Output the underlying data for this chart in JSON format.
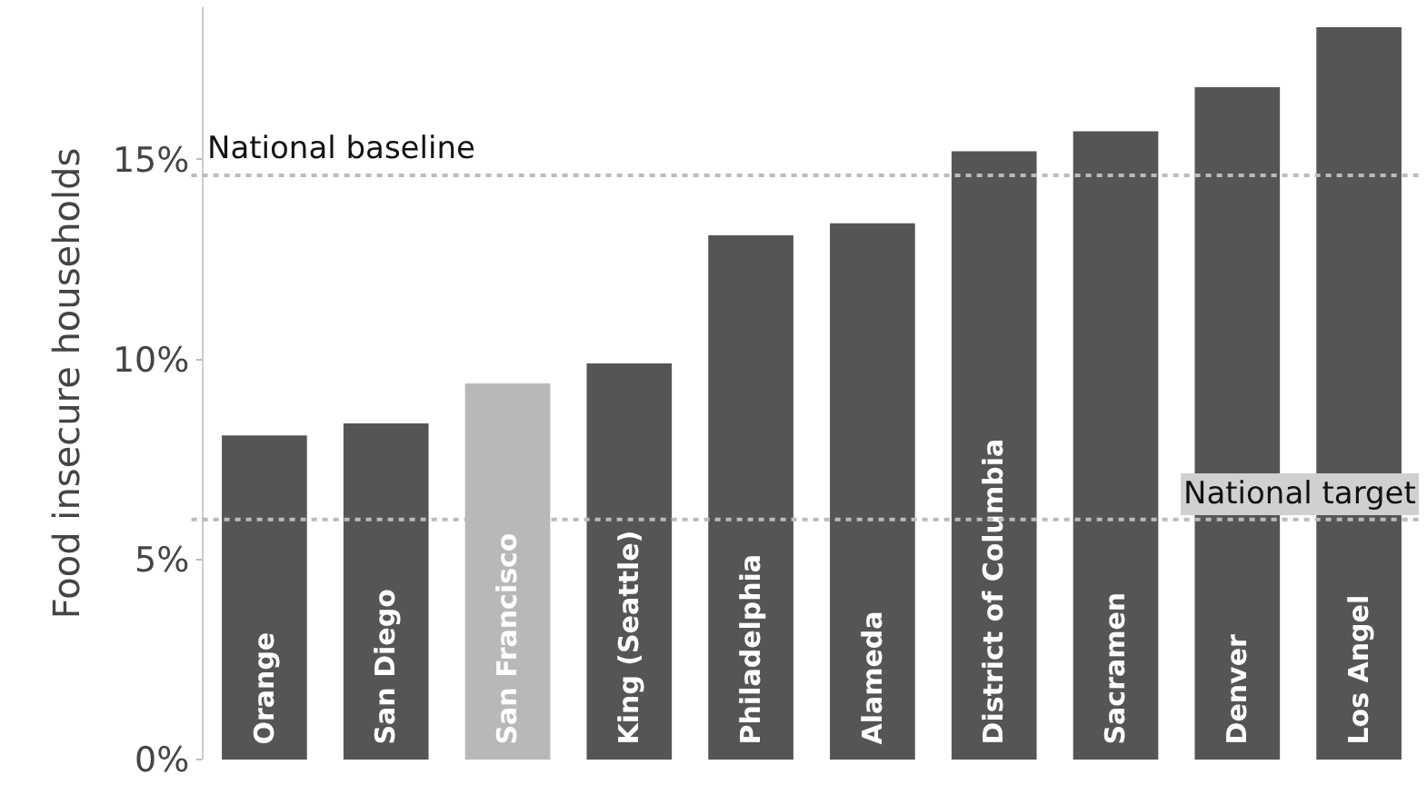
{
  "chart_data": {
    "type": "bar",
    "ylabel": "Food insecure households",
    "categories": [
      "Orange",
      "San Diego",
      "San Francisco",
      "King (Seattle)",
      "Philadelphia",
      "Alameda",
      "District of Columbia",
      "Sacramen",
      "Denver",
      "Los Angel"
    ],
    "values": [
      8.1,
      8.4,
      9.4,
      9.9,
      13.1,
      13.4,
      15.2,
      15.7,
      16.8,
      18.3
    ],
    "colors": [
      "#555555",
      "#555555",
      "#b8b8b8",
      "#555555",
      "#555555",
      "#555555",
      "#555555",
      "#555555",
      "#555555",
      "#555555"
    ],
    "ylim": [
      0,
      18.8
    ],
    "yticks": [
      {
        "value": 0,
        "label": "0%"
      },
      {
        "value": 5,
        "label": "5%"
      },
      {
        "value": 10,
        "label": "10%"
      },
      {
        "value": 15,
        "label": "15%"
      }
    ],
    "grid": false,
    "ref_lines": [
      {
        "axis": "y",
        "value": 14.6,
        "label": "National baseline",
        "color": "#bbbbbb",
        "line_style": "dotted"
      },
      {
        "axis": "y",
        "value": 6.0,
        "label": "National target",
        "color": "#bbbbbb",
        "line_style": "dotted"
      }
    ]
  }
}
